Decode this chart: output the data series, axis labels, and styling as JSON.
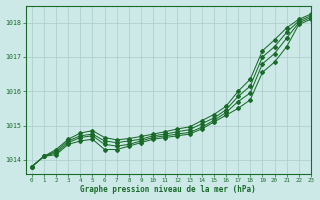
{
  "background_color": "#cce9e8",
  "grid_color": "#aacccc",
  "line_color": "#1a6b2a",
  "title": "Graphe pression niveau de la mer (hPa)",
  "xlim": [
    -0.5,
    23
  ],
  "ylim": [
    1013.6,
    1018.5
  ],
  "yticks": [
    1014,
    1015,
    1016,
    1017,
    1018
  ],
  "xticks": [
    0,
    1,
    2,
    3,
    4,
    5,
    6,
    7,
    8,
    9,
    10,
    11,
    12,
    13,
    14,
    15,
    16,
    17,
    18,
    19,
    20,
    21,
    22,
    23
  ],
  "line1": [
    1013.8,
    1014.1,
    1014.15,
    1014.45,
    1014.55,
    1014.6,
    1014.3,
    1014.3,
    1014.4,
    1014.5,
    1014.6,
    1014.65,
    1014.7,
    1014.75,
    1014.9,
    1015.1,
    1015.3,
    1015.5,
    1015.75,
    1016.55,
    1016.85,
    1017.3,
    1017.95,
    1018.1
  ],
  "line2": [
    1013.8,
    1014.1,
    1014.2,
    1014.5,
    1014.65,
    1014.7,
    1014.45,
    1014.4,
    1014.45,
    1014.55,
    1014.65,
    1014.7,
    1014.75,
    1014.8,
    1014.95,
    1015.15,
    1015.38,
    1015.7,
    1015.95,
    1016.8,
    1017.1,
    1017.55,
    1018.0,
    1018.15
  ],
  "line3": [
    1013.8,
    1014.1,
    1014.25,
    1014.55,
    1014.7,
    1014.75,
    1014.55,
    1014.5,
    1014.55,
    1014.6,
    1014.7,
    1014.75,
    1014.82,
    1014.88,
    1015.05,
    1015.22,
    1015.46,
    1015.85,
    1016.15,
    1017.0,
    1017.3,
    1017.72,
    1018.05,
    1018.2
  ],
  "line4": [
    1013.8,
    1014.1,
    1014.3,
    1014.6,
    1014.78,
    1014.85,
    1014.65,
    1014.58,
    1014.62,
    1014.68,
    1014.75,
    1014.82,
    1014.9,
    1014.96,
    1015.14,
    1015.32,
    1015.56,
    1016.0,
    1016.35,
    1017.18,
    1017.5,
    1017.85,
    1018.1,
    1018.25
  ]
}
